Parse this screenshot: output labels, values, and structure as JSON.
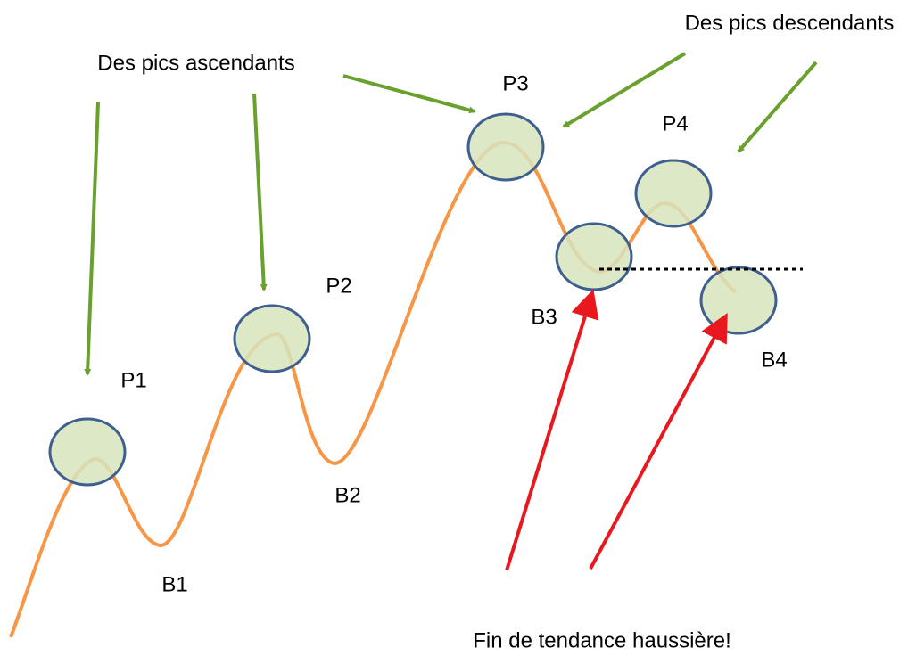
{
  "annotations": {
    "ascending": "Des pics ascendants",
    "descending": "Des pics descendants",
    "end": "Fin de tendance haussière!"
  },
  "nodes": [
    {
      "label": "P1"
    },
    {
      "label": "B1"
    },
    {
      "label": "P2"
    },
    {
      "label": "B2"
    },
    {
      "label": "P3"
    },
    {
      "label": "B3"
    },
    {
      "label": "P4"
    },
    {
      "label": "B4"
    }
  ]
}
